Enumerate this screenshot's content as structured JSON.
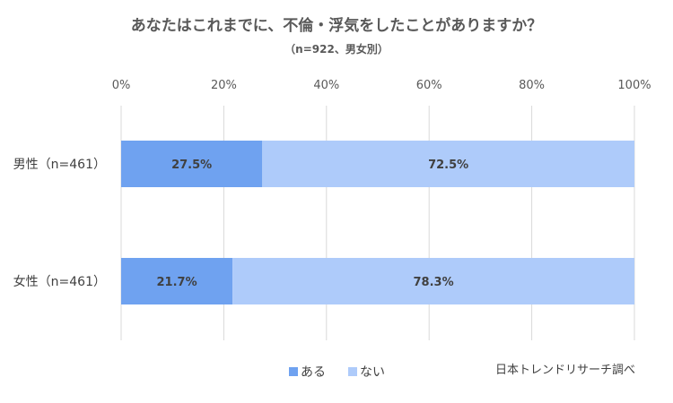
{
  "chart_data": {
    "type": "bar",
    "orientation": "horizontal",
    "stacked": true,
    "title": "あなたはこれまでに、不倫・浮気をしたことがありますか？",
    "subtitle": "（n=922、男女別）",
    "categories": [
      "男性（n=461）",
      "女性（n=461）"
    ],
    "series": [
      {
        "name": "ある",
        "values": [
          27.5,
          21.7
        ],
        "labels": [
          "27.5%",
          "21.7%"
        ],
        "color": "#6fa2f0"
      },
      {
        "name": "ない",
        "values": [
          72.5,
          78.3
        ],
        "labels": [
          "72.5%",
          "78.3%"
        ],
        "color": "#aecbfa"
      }
    ],
    "xlim": [
      0,
      100
    ],
    "x_ticks": [
      0,
      20,
      40,
      60,
      80,
      100
    ],
    "x_tick_labels": [
      "0%",
      "20%",
      "40%",
      "60%",
      "80%",
      "100%"
    ],
    "x_axis_position": "top",
    "grid": true,
    "legend": "bottom",
    "source": "日本トレンドリサーチ調べ"
  }
}
